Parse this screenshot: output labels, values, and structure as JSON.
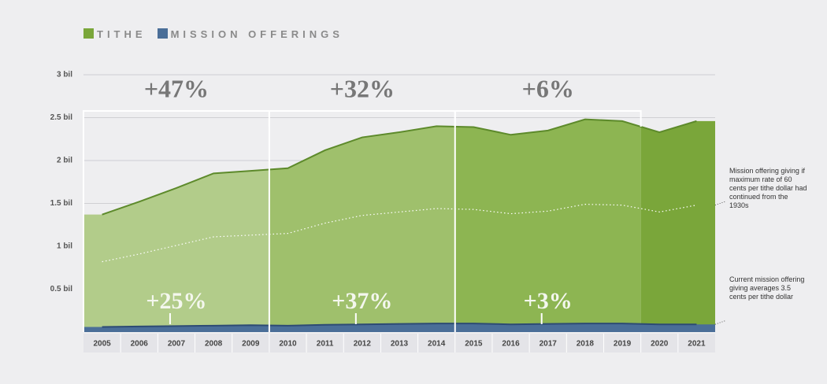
{
  "chart_data": {
    "type": "area",
    "categories": [
      "2005",
      "2006",
      "2007",
      "2008",
      "2009",
      "2010",
      "2011",
      "2012",
      "2013",
      "2014",
      "2015",
      "2016",
      "2017",
      "2018",
      "2019",
      "2020",
      "2021"
    ],
    "series": [
      {
        "name": "TITHE",
        "color": "#7aa63a",
        "values": [
          1.37,
          1.52,
          1.68,
          1.85,
          1.88,
          1.91,
          2.12,
          2.27,
          2.33,
          2.4,
          2.39,
          2.3,
          2.35,
          2.48,
          2.46,
          2.33,
          2.46
        ]
      },
      {
        "name": "MISSION OFFERINGS",
        "color": "#4a6e98",
        "values": [
          0.06,
          0.065,
          0.07,
          0.075,
          0.08,
          0.075,
          0.085,
          0.09,
          0.095,
          0.1,
          0.1,
          0.09,
          0.095,
          0.1,
          0.1,
          0.09,
          0.09
        ]
      },
      {
        "name": "Mission offering giving if maximum rate of 60 cents per tithe dollar had continued from the 1930s",
        "color": "#ffffff",
        "style": "dotted",
        "values": [
          0.82,
          0.91,
          1.01,
          1.11,
          1.13,
          1.15,
          1.27,
          1.36,
          1.4,
          1.44,
          1.43,
          1.38,
          1.41,
          1.49,
          1.48,
          1.4,
          1.48
        ]
      }
    ],
    "side_notes": [
      {
        "text": "Mission offering giving if maximum rate of 60 cents per tithe dollar had continued from the 1930s",
        "series": 2
      },
      {
        "text": "Current mission offering giving averages 3.5 cents per tithe dollar",
        "series": 1
      }
    ],
    "periods": [
      {
        "start": "2005",
        "end": "2009",
        "color": "#b2cc8a",
        "tithe_change": "+47%",
        "mission_change": "+25%"
      },
      {
        "start": "2010",
        "end": "2014",
        "color": "#9fc06c",
        "tithe_change": "+32%",
        "mission_change": "+37%"
      },
      {
        "start": "2015",
        "end": "2019",
        "color": "#8db552",
        "tithe_change": "+6%",
        "mission_change": "+3%"
      },
      {
        "start": "2020",
        "end": "2021",
        "color": "#7aa63a"
      }
    ],
    "ylim": [
      0,
      3
    ],
    "yticks": [
      {
        "value": 0.5,
        "label": "0.5 bil"
      },
      {
        "value": 1,
        "label": "1 bil"
      },
      {
        "value": 1.5,
        "label": "1.5 bil"
      },
      {
        "value": 2,
        "label": "2 bil"
      },
      {
        "value": 2.5,
        "label": "2.5 bil"
      },
      {
        "value": 3,
        "label": "3 bil"
      }
    ],
    "grid": true
  }
}
